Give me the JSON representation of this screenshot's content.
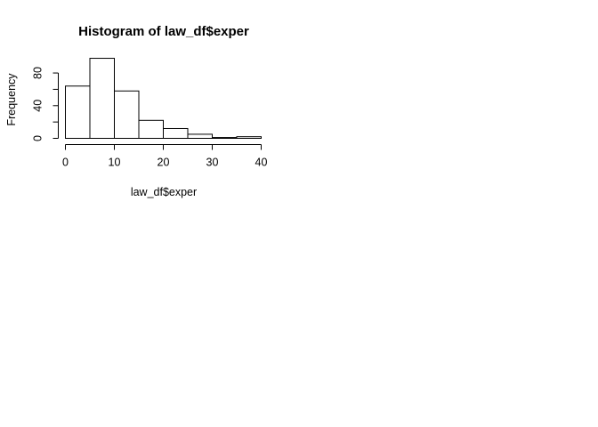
{
  "chart_data": {
    "type": "bar",
    "title": "Histogram of law_df$exper",
    "xlabel": "law_df$exper",
    "ylabel": "Frequency",
    "bins": [
      [
        0,
        5
      ],
      [
        5,
        10
      ],
      [
        10,
        15
      ],
      [
        15,
        20
      ],
      [
        20,
        25
      ],
      [
        25,
        30
      ],
      [
        30,
        35
      ],
      [
        35,
        40
      ]
    ],
    "values": [
      64,
      98,
      58,
      22,
      12,
      5,
      1,
      2
    ],
    "xlim": [
      0,
      40
    ],
    "ylim": [
      0,
      98
    ],
    "x_ticks": [
      0,
      10,
      20,
      30,
      40
    ],
    "y_ticks": [
      0,
      20,
      40,
      60,
      80
    ],
    "y_tick_labels": [
      "0",
      "",
      "40",
      "",
      "80"
    ],
    "grid": false,
    "bar_fill": "#ffffff",
    "bar_stroke": "#000000"
  }
}
